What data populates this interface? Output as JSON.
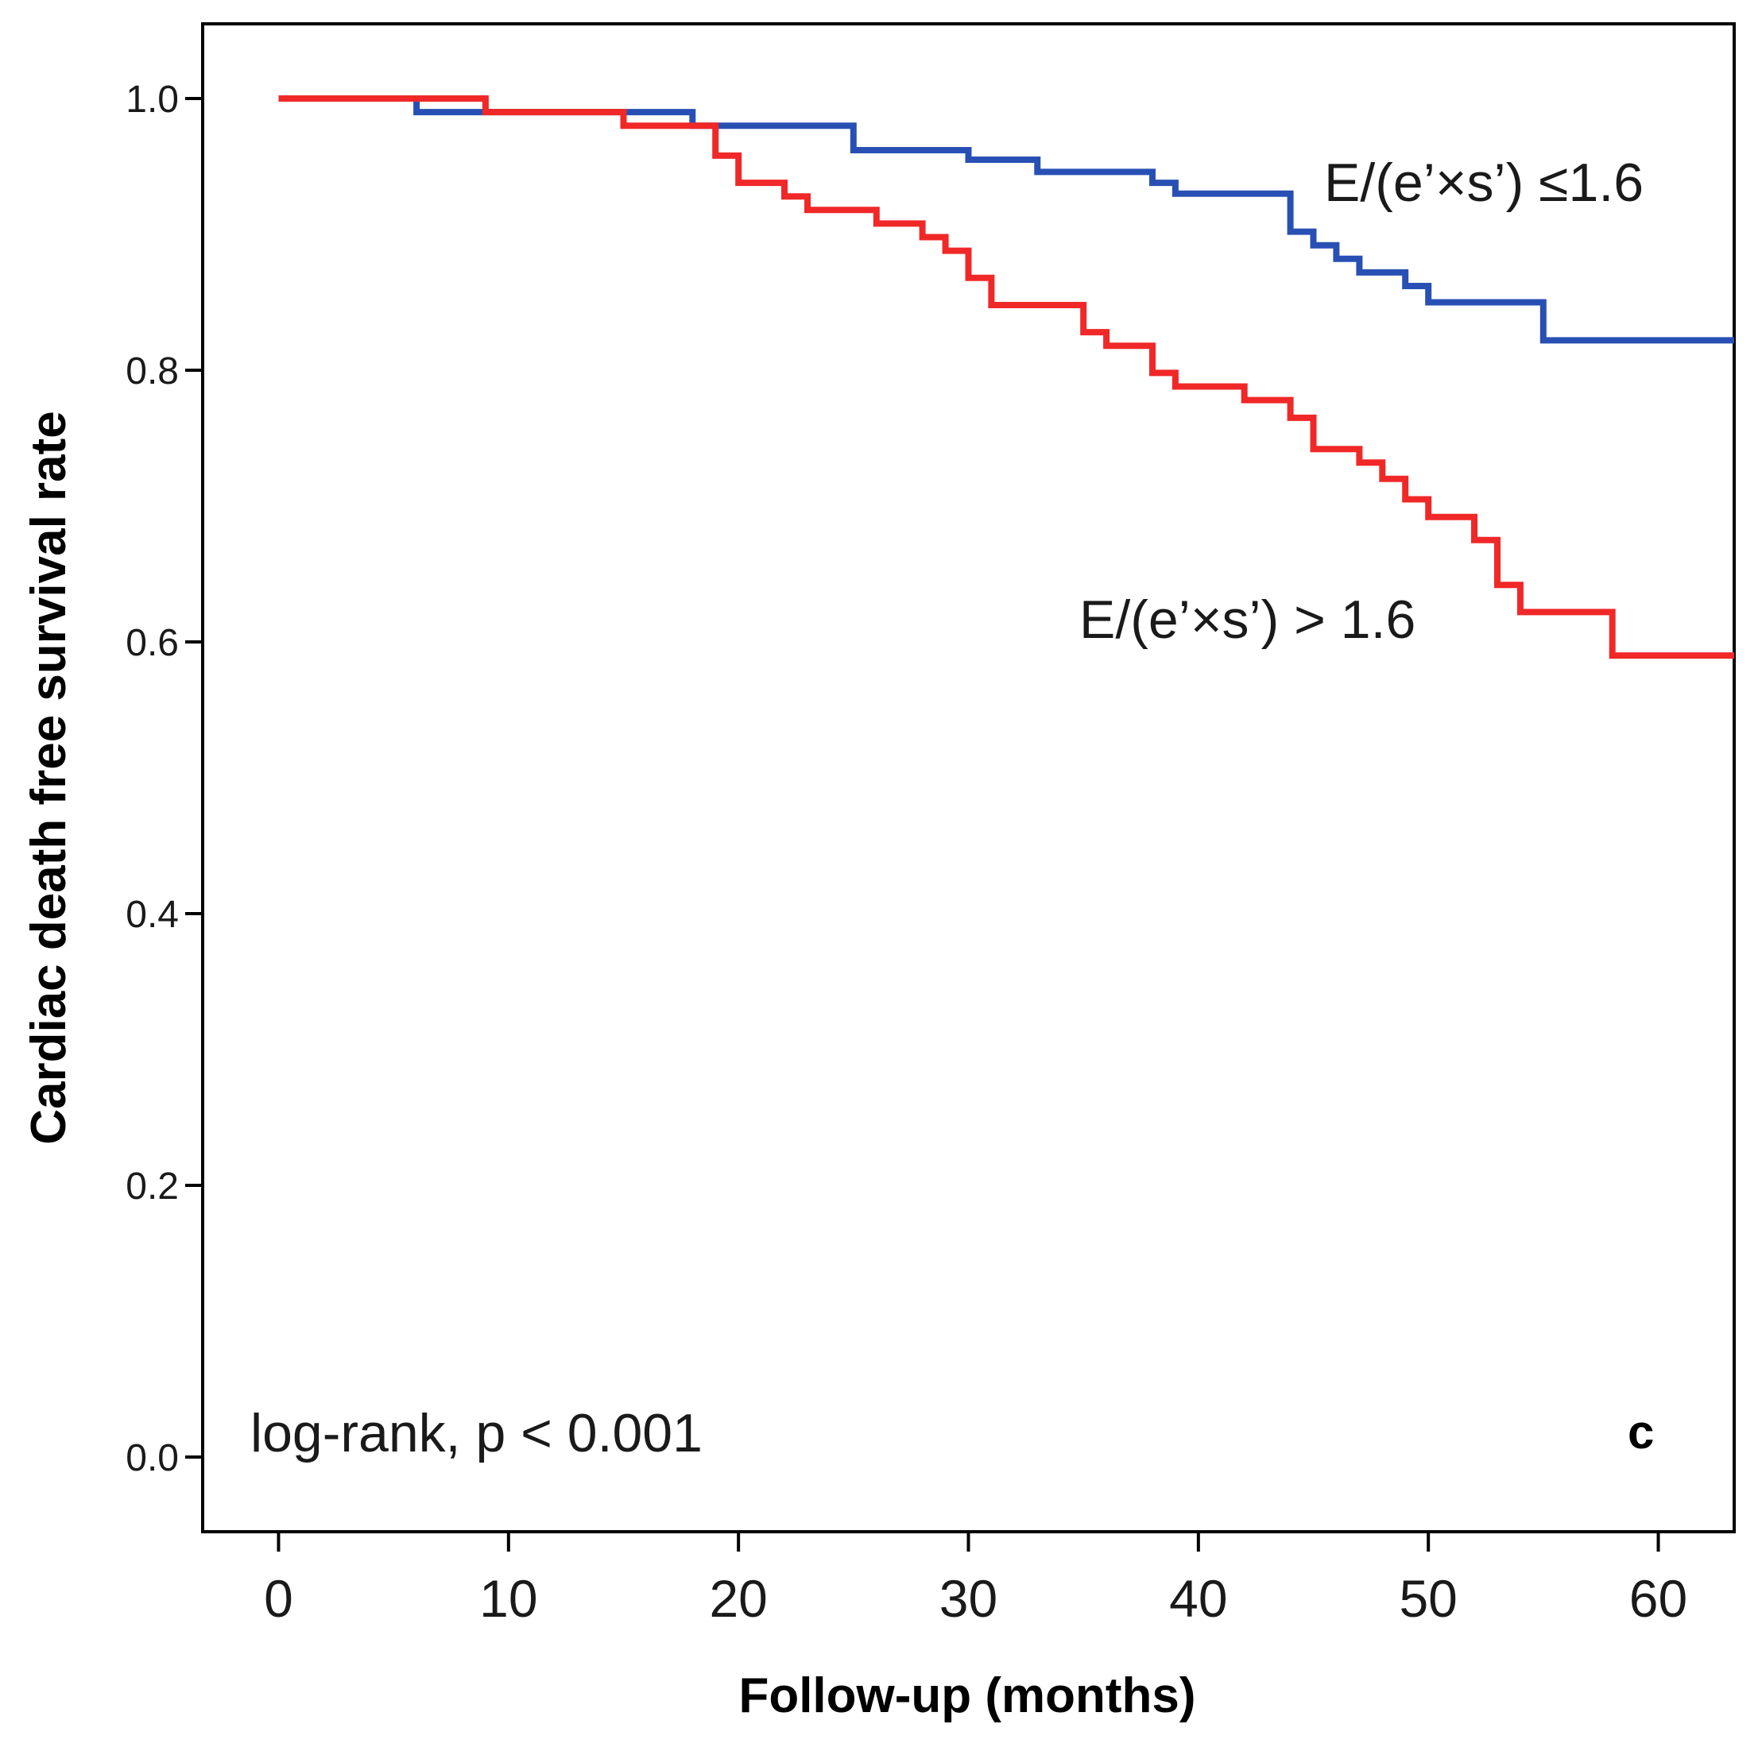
{
  "chart_data": {
    "type": "line",
    "subtype": "kaplan-meier-step",
    "xlabel": "Follow-up (months)",
    "ylabel": "Cardiac death free survival rate",
    "xlim": [
      -3.3,
      63.3
    ],
    "ylim": [
      -0.055,
      1.055
    ],
    "xticks": [
      0,
      10,
      20,
      30,
      40,
      50,
      60
    ],
    "xtick_labels": [
      "0",
      "10",
      "20",
      "30",
      "40",
      "50",
      "60"
    ],
    "yticks": [
      0.0,
      0.2,
      0.4,
      0.6,
      0.8,
      1.0
    ],
    "ytick_labels": [
      "0.0",
      "0.2",
      "0.4",
      "0.6",
      "0.8",
      "1.0"
    ],
    "grid": false,
    "annotation_text": "log-rank, p < 0.001",
    "panel_letter": "c",
    "series": [
      {
        "name": "E/(e’×s’) ≤1.6",
        "color": "#2850b4",
        "points": [
          [
            0,
            1.0
          ],
          [
            6,
            0.99
          ],
          [
            15,
            0.99
          ],
          [
            18,
            0.98
          ],
          [
            25,
            0.962
          ],
          [
            30,
            0.955
          ],
          [
            33,
            0.946
          ],
          [
            38,
            0.938
          ],
          [
            39,
            0.93
          ],
          [
            44,
            0.902
          ],
          [
            45,
            0.892
          ],
          [
            46,
            0.882
          ],
          [
            47,
            0.872
          ],
          [
            49,
            0.862
          ],
          [
            50,
            0.85
          ],
          [
            55,
            0.822
          ],
          [
            63.3,
            0.822
          ]
        ]
      },
      {
        "name": "E/(e’×s’) > 1.6",
        "color": "#f02828",
        "points": [
          [
            0,
            1.0
          ],
          [
            9,
            0.99
          ],
          [
            15,
            0.98
          ],
          [
            19,
            0.958
          ],
          [
            20,
            0.938
          ],
          [
            22,
            0.928
          ],
          [
            23,
            0.918
          ],
          [
            26,
            0.908
          ],
          [
            28,
            0.898
          ],
          [
            29,
            0.888
          ],
          [
            30,
            0.868
          ],
          [
            31,
            0.848
          ],
          [
            35,
            0.828
          ],
          [
            36,
            0.818
          ],
          [
            38,
            0.798
          ],
          [
            39,
            0.788
          ],
          [
            42,
            0.778
          ],
          [
            44,
            0.765
          ],
          [
            45,
            0.742
          ],
          [
            47,
            0.732
          ],
          [
            48,
            0.72
          ],
          [
            49,
            0.705
          ],
          [
            50,
            0.692
          ],
          [
            52,
            0.675
          ],
          [
            53,
            0.642
          ],
          [
            54,
            0.622
          ],
          [
            58,
            0.59
          ],
          [
            63.3,
            0.59
          ]
        ]
      }
    ],
    "series_labels": [
      "E/(e’×s’) ≤1.6",
      "E/(e’×s’) > 1.6"
    ]
  }
}
